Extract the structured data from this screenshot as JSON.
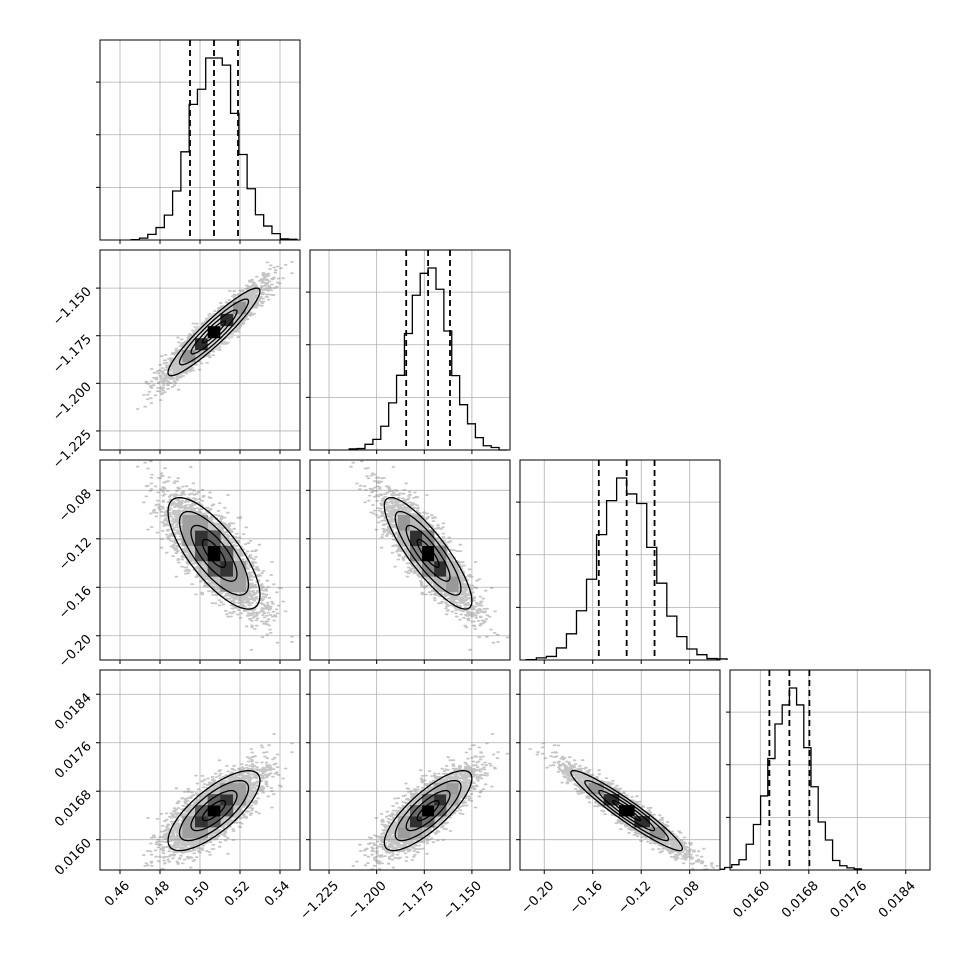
{
  "chart_data": {
    "type": "scatter",
    "subtype": "corner-plot",
    "title": "",
    "grid": true,
    "colors": {
      "line": "#000000",
      "grid": "#b0b0b0",
      "points": "#7f7f7f"
    },
    "parameters": [
      {
        "mean": 0.507,
        "sd": 0.0115,
        "q16": 0.495,
        "q50": 0.507,
        "q84": 0.519,
        "range": [
          0.45,
          0.55
        ],
        "ticks": [
          0.46,
          0.48,
          0.5,
          0.52,
          0.54
        ],
        "tick_labels": [
          "0.46",
          "0.48",
          "0.50",
          "0.52",
          "0.54"
        ]
      },
      {
        "mean": -1.173,
        "sd": 0.0115,
        "q16": -1.1845,
        "q50": -1.173,
        "q84": -1.1615,
        "range": [
          -1.235,
          -1.13
        ],
        "ticks": [
          -1.225,
          -1.2,
          -1.175,
          -1.15
        ],
        "tick_labels": [
          "−1.225",
          "−1.200",
          "−1.175",
          "−1.150"
        ]
      },
      {
        "mean": -0.132,
        "sd": 0.023,
        "q16": -0.155,
        "q50": -0.132,
        "q84": -0.109,
        "range": [
          -0.22,
          -0.055
        ],
        "ticks": [
          -0.2,
          -0.16,
          -0.12,
          -0.08
        ],
        "tick_labels": [
          "−0.20",
          "−0.16",
          "−0.12",
          "−0.08"
        ]
      },
      {
        "mean": 0.01648,
        "sd": 0.00033,
        "q16": 0.01615,
        "q50": 0.01648,
        "q84": 0.01681,
        "range": [
          0.0155,
          0.0188
        ],
        "ticks": [
          0.016,
          0.0168,
          0.0176,
          0.0184
        ],
        "tick_labels": [
          "0.0160",
          "0.0168",
          "0.0176",
          "0.0184"
        ]
      }
    ],
    "correlations": [
      [
        1.0,
        0.93,
        -0.75,
        0.75
      ],
      [
        0.93,
        1.0,
        -0.85,
        0.8
      ],
      [
        -0.75,
        -0.85,
        1.0,
        -0.95
      ],
      [
        0.75,
        0.8,
        -0.95,
        1.0
      ]
    ],
    "histogram_bins": 20,
    "contour_levels": [
      0.5,
      1.0,
      1.5,
      2.0
    ]
  }
}
